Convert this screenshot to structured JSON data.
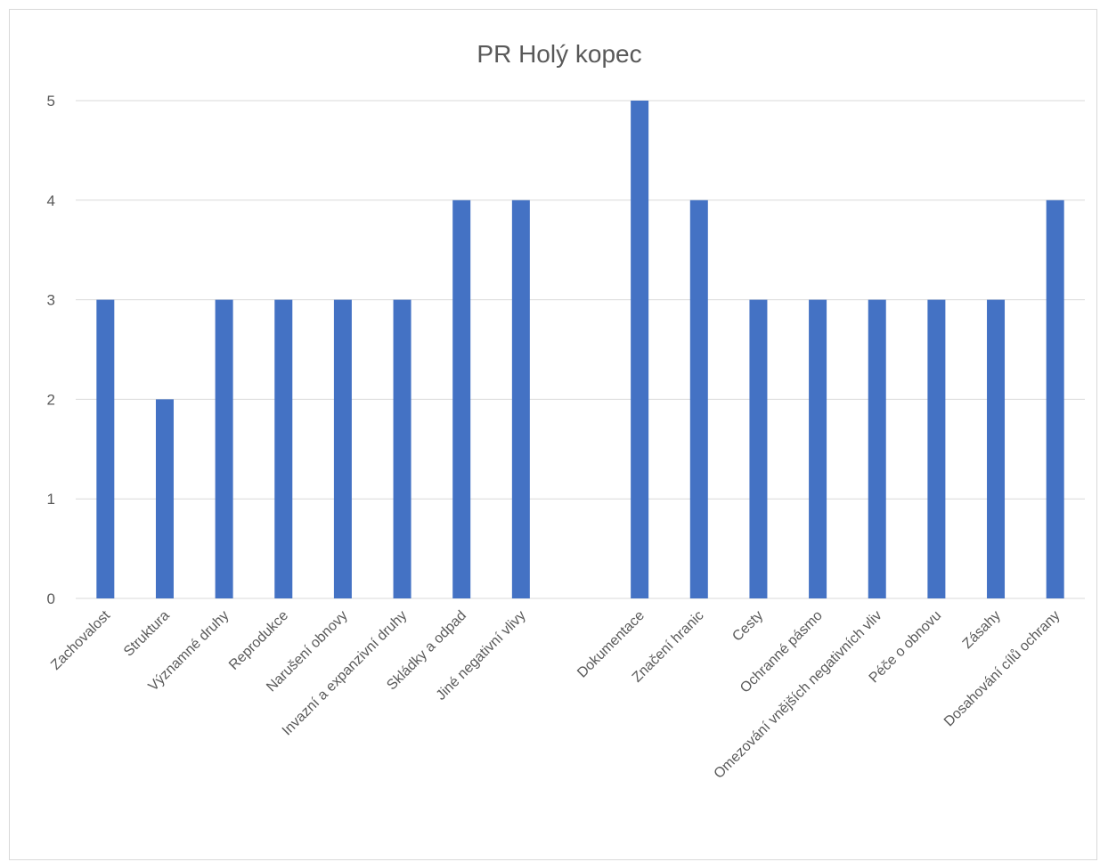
{
  "chart_data": {
    "type": "bar",
    "title": "PR Holý kopec",
    "xlabel": "",
    "ylabel": "",
    "ylim": [
      0,
      5
    ],
    "yticks": [
      0,
      1,
      2,
      3,
      4,
      5
    ],
    "grid": true,
    "legend": "none",
    "bar_color": "#4472C4",
    "categories": [
      "Zachovalost",
      "Struktura",
      "Významné druhy",
      "Reprodukce",
      "Narušení obnovy",
      "Invazní a expanzivní druhy",
      "Skládky a odpad",
      "Jiné negativní vlivy",
      "",
      "Dokumentace",
      "Značení hranic",
      "Cesty",
      "Ochranné pásmo",
      "Omezování vnějších negativních vliv",
      "Péče o obnovu",
      "Zásahy",
      "Dosahování cílů ochrany"
    ],
    "values": [
      3,
      2,
      3,
      3,
      3,
      3,
      4,
      4,
      null,
      5,
      4,
      3,
      3,
      3,
      3,
      3,
      4
    ]
  }
}
